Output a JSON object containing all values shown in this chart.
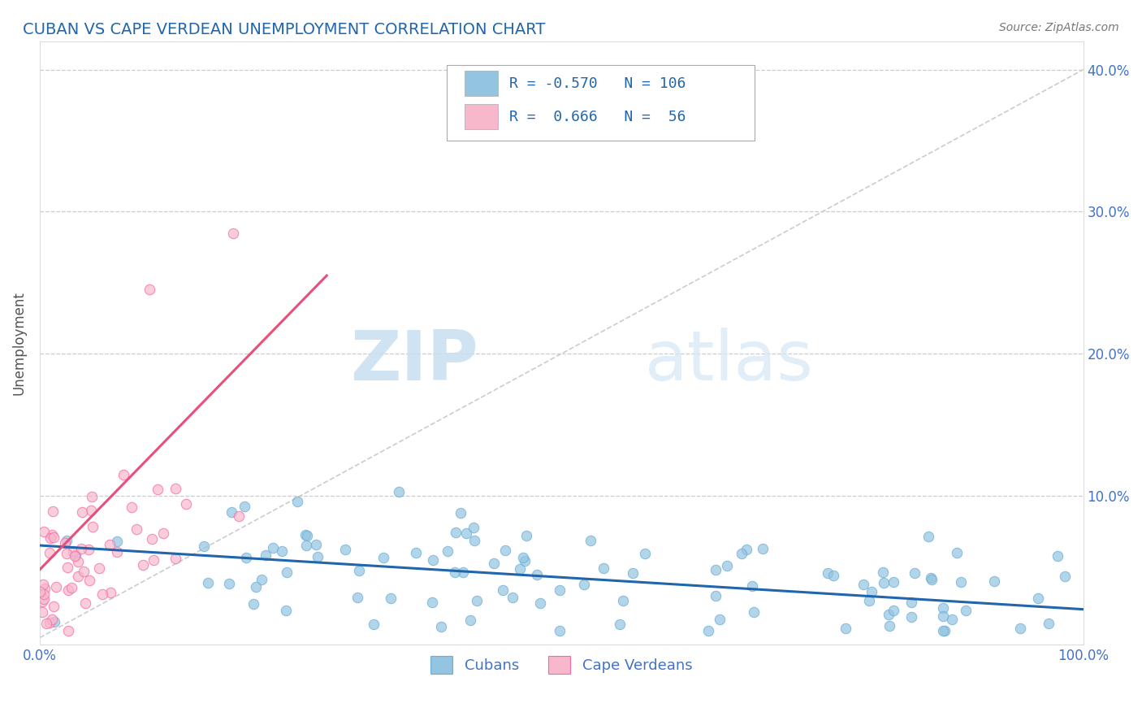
{
  "title": "CUBAN VS CAPE VERDEAN UNEMPLOYMENT CORRELATION CHART",
  "source_text": "Source: ZipAtlas.com",
  "ylabel": "Unemployment",
  "xlim": [
    0,
    1.0
  ],
  "ylim": [
    -0.005,
    0.42
  ],
  "yticks": [
    0.1,
    0.2,
    0.3,
    0.4
  ],
  "yticklabels_right": [
    "10.0%",
    "20.0%",
    "30.0%",
    "40.0%"
  ],
  "xtick_left": 0.0,
  "xtick_right": 1.0,
  "xticklabel_left": "0.0%",
  "xticklabel_right": "100.0%",
  "cuban_color": "#93c4e0",
  "cuban_edge_color": "#6baed6",
  "capeverdean_color": "#f7b8cc",
  "capeverdean_edge_color": "#f768a1",
  "cuban_R": -0.57,
  "cuban_N": 106,
  "capeverdean_R": 0.666,
  "capeverdean_N": 56,
  "legend_label_cuban": "Cubans",
  "legend_label_cape": "Cape Verdeans",
  "watermark_zip": "ZIP",
  "watermark_atlas": "atlas",
  "title_color": "#2166ac",
  "grid_color": "#cccccc",
  "background_color": "#ffffff",
  "cuban_line_color": "#2166ac",
  "capeverdean_line_color": "#e8507a",
  "ref_line_color": "#cccccc",
  "legend_text_color": "#2166ac",
  "ylabel_color": "#555555",
  "tick_color": "#4472c4"
}
